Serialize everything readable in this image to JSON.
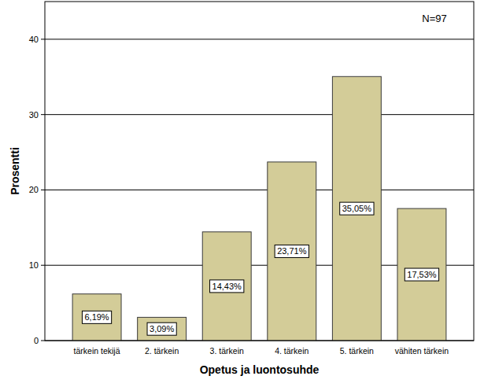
{
  "chart_data": {
    "type": "bar",
    "x_label": "Opetus ja luontosuhde",
    "y_label": "Prosentti",
    "annotation": "N=97",
    "categories": [
      "tärkein tekijä",
      "2. tärkein",
      "3. tärkein",
      "4. tärkein",
      "5. tärkein",
      "vähiten tärkein"
    ],
    "values": [
      6.19,
      3.09,
      14.43,
      23.71,
      35.05,
      17.53
    ],
    "value_labels": [
      "6,19%",
      "3,09%",
      "14,43%",
      "23,71%",
      "35,05%",
      "17,53%"
    ],
    "color": "#d3cc98",
    "ylim": [
      0,
      45
    ],
    "yticks": [
      0,
      10,
      20,
      30,
      40
    ],
    "grid": true,
    "data_labels": true
  }
}
